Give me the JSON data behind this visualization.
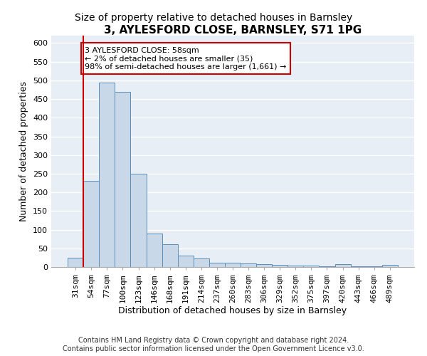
{
  "title": "3, AYLESFORD CLOSE, BARNSLEY, S71 1PG",
  "subtitle": "Size of property relative to detached houses in Barnsley",
  "xlabel": "Distribution of detached houses by size in Barnsley",
  "ylabel": "Number of detached properties",
  "categories": [
    "31sqm",
    "54sqm",
    "77sqm",
    "100sqm",
    "123sqm",
    "146sqm",
    "168sqm",
    "191sqm",
    "214sqm",
    "237sqm",
    "260sqm",
    "283sqm",
    "306sqm",
    "329sqm",
    "352sqm",
    "375sqm",
    "397sqm",
    "420sqm",
    "443sqm",
    "466sqm",
    "489sqm"
  ],
  "values": [
    25,
    230,
    495,
    470,
    250,
    90,
    62,
    30,
    22,
    12,
    12,
    10,
    8,
    5,
    4,
    3,
    2,
    7,
    2,
    1,
    5
  ],
  "bar_color": "#c8d8e8",
  "bar_edge_color": "#5b8db8",
  "property_line_color": "#cc0000",
  "annotation_text": "3 AYLESFORD CLOSE: 58sqm\n← 2% of detached houses are smaller (35)\n98% of semi-detached houses are larger (1,661) →",
  "annotation_box_color": "#ffffff",
  "annotation_box_edge_color": "#cc0000",
  "ylim": [
    0,
    620
  ],
  "yticks": [
    0,
    50,
    100,
    150,
    200,
    250,
    300,
    350,
    400,
    450,
    500,
    550,
    600
  ],
  "footer": "Contains HM Land Registry data © Crown copyright and database right 2024.\nContains public sector information licensed under the Open Government Licence v3.0.",
  "fig_bg_color": "#ffffff",
  "plot_bg_color": "#e8eef5",
  "grid_color": "#ffffff",
  "title_fontsize": 11,
  "subtitle_fontsize": 10,
  "axis_label_fontsize": 9,
  "tick_fontsize": 8,
  "footer_fontsize": 7,
  "annotation_fontsize": 8
}
